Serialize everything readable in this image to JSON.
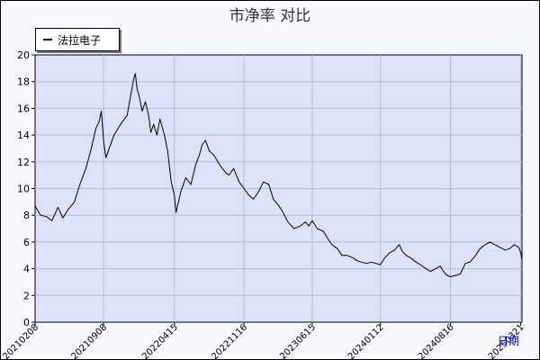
{
  "chart_data": {
    "type": "line",
    "title": "市净率  对比",
    "xlabel": "日期",
    "ylabel": "",
    "ylim": [
      0,
      20
    ],
    "yticks": [
      0,
      2,
      4,
      6,
      8,
      10,
      12,
      14,
      16,
      18,
      20
    ],
    "xticks": [
      "20210208",
      "20210908",
      "20220415",
      "20221116",
      "20230615",
      "20240112",
      "20240816",
      "20250321"
    ],
    "grid": true,
    "legend": {
      "position": "top-left",
      "entries": [
        "法拉电子"
      ]
    },
    "series": [
      {
        "name": "法拉电子",
        "color": "#000000",
        "points": [
          [
            "20210208",
            8.7
          ],
          [
            "20210225",
            8.0
          ],
          [
            "20210315",
            7.9
          ],
          [
            "20210401",
            7.6
          ],
          [
            "20210420",
            8.6
          ],
          [
            "20210505",
            7.8
          ],
          [
            "20210520",
            8.4
          ],
          [
            "20210610",
            9.0
          ],
          [
            "20210625",
            10.2
          ],
          [
            "20210715",
            11.5
          ],
          [
            "20210801",
            13.0
          ],
          [
            "20210815",
            14.5
          ],
          [
            "20210825",
            15.0
          ],
          [
            "20210901",
            15.8
          ],
          [
            "20210908",
            13.5
          ],
          [
            "20210915",
            12.3
          ],
          [
            "20210925",
            13.0
          ],
          [
            "20211010",
            14.0
          ],
          [
            "20211025",
            14.6
          ],
          [
            "20211105",
            15.0
          ],
          [
            "20211120",
            15.5
          ],
          [
            "20211201",
            17.0
          ],
          [
            "20211210",
            18.2
          ],
          [
            "20211215",
            18.6
          ],
          [
            "20211220",
            17.5
          ],
          [
            "20211228",
            16.8
          ],
          [
            "20220105",
            15.8
          ],
          [
            "20220115",
            16.5
          ],
          [
            "20220125",
            15.5
          ],
          [
            "20220201",
            14.2
          ],
          [
            "20220210",
            14.8
          ],
          [
            "20220220",
            14.0
          ],
          [
            "20220301",
            15.2
          ],
          [
            "20220315",
            14.0
          ],
          [
            "20220325",
            12.8
          ],
          [
            "20220405",
            10.5
          ],
          [
            "20220415",
            9.5
          ],
          [
            "20220420",
            8.2
          ],
          [
            "20220505",
            9.8
          ],
          [
            "20220520",
            10.8
          ],
          [
            "20220605",
            10.3
          ],
          [
            "20220620",
            11.8
          ],
          [
            "20220701",
            12.5
          ],
          [
            "20220710",
            13.3
          ],
          [
            "20220720",
            13.6
          ],
          [
            "20220801",
            12.8
          ],
          [
            "20220815",
            12.5
          ],
          [
            "20220901",
            11.8
          ],
          [
            "20220920",
            11.2
          ],
          [
            "20221001",
            11.0
          ],
          [
            "20221015",
            11.5
          ],
          [
            "20221101",
            10.5
          ],
          [
            "20221116",
            10.0
          ],
          [
            "20221201",
            9.5
          ],
          [
            "20221215",
            9.2
          ],
          [
            "20230101",
            9.8
          ],
          [
            "20230115",
            10.5
          ],
          [
            "20230201",
            10.3
          ],
          [
            "20230215",
            9.2
          ],
          [
            "20230301",
            8.8
          ],
          [
            "20230315",
            8.3
          ],
          [
            "20230401",
            7.5
          ],
          [
            "20230420",
            7.0
          ],
          [
            "20230510",
            7.2
          ],
          [
            "20230525",
            7.5
          ],
          [
            "20230605",
            7.2
          ],
          [
            "20230615",
            7.6
          ],
          [
            "20230701",
            7.0
          ],
          [
            "20230720",
            6.8
          ],
          [
            "20230801",
            6.3
          ],
          [
            "20230815",
            5.8
          ],
          [
            "20230901",
            5.5
          ],
          [
            "20230915",
            5.0
          ],
          [
            "20231001",
            5.0
          ],
          [
            "20231020",
            4.8
          ],
          [
            "20231101",
            4.6
          ],
          [
            "20231115",
            4.5
          ],
          [
            "20231201",
            4.4
          ],
          [
            "20231215",
            4.5
          ],
          [
            "20240112",
            4.3
          ],
          [
            "20240125",
            4.8
          ],
          [
            "20240210",
            5.2
          ],
          [
            "20240225",
            5.4
          ],
          [
            "20240310",
            5.8
          ],
          [
            "20240320",
            5.3
          ],
          [
            "20240401",
            5.0
          ],
          [
            "20240415",
            4.8
          ],
          [
            "20240501",
            4.5
          ],
          [
            "20240515",
            4.3
          ],
          [
            "20240601",
            4.0
          ],
          [
            "20240615",
            3.8
          ],
          [
            "20240701",
            4.0
          ],
          [
            "20240715",
            4.2
          ],
          [
            "20240725",
            3.8
          ],
          [
            "20240805",
            3.5
          ],
          [
            "20240816",
            3.4
          ],
          [
            "20240901",
            3.5
          ],
          [
            "20240915",
            3.6
          ],
          [
            "20241001",
            4.4
          ],
          [
            "20241015",
            4.5
          ],
          [
            "20241101",
            5.0
          ],
          [
            "20241115",
            5.5
          ],
          [
            "20241201",
            5.8
          ],
          [
            "20241215",
            6.0
          ],
          [
            "20250101",
            5.8
          ],
          [
            "20250115",
            5.6
          ],
          [
            "20250201",
            5.4
          ],
          [
            "20250215",
            5.5
          ],
          [
            "20250301",
            5.8
          ],
          [
            "20250315",
            5.6
          ],
          [
            "20250321",
            5.2
          ],
          [
            "20250325",
            4.7
          ]
        ]
      }
    ]
  }
}
